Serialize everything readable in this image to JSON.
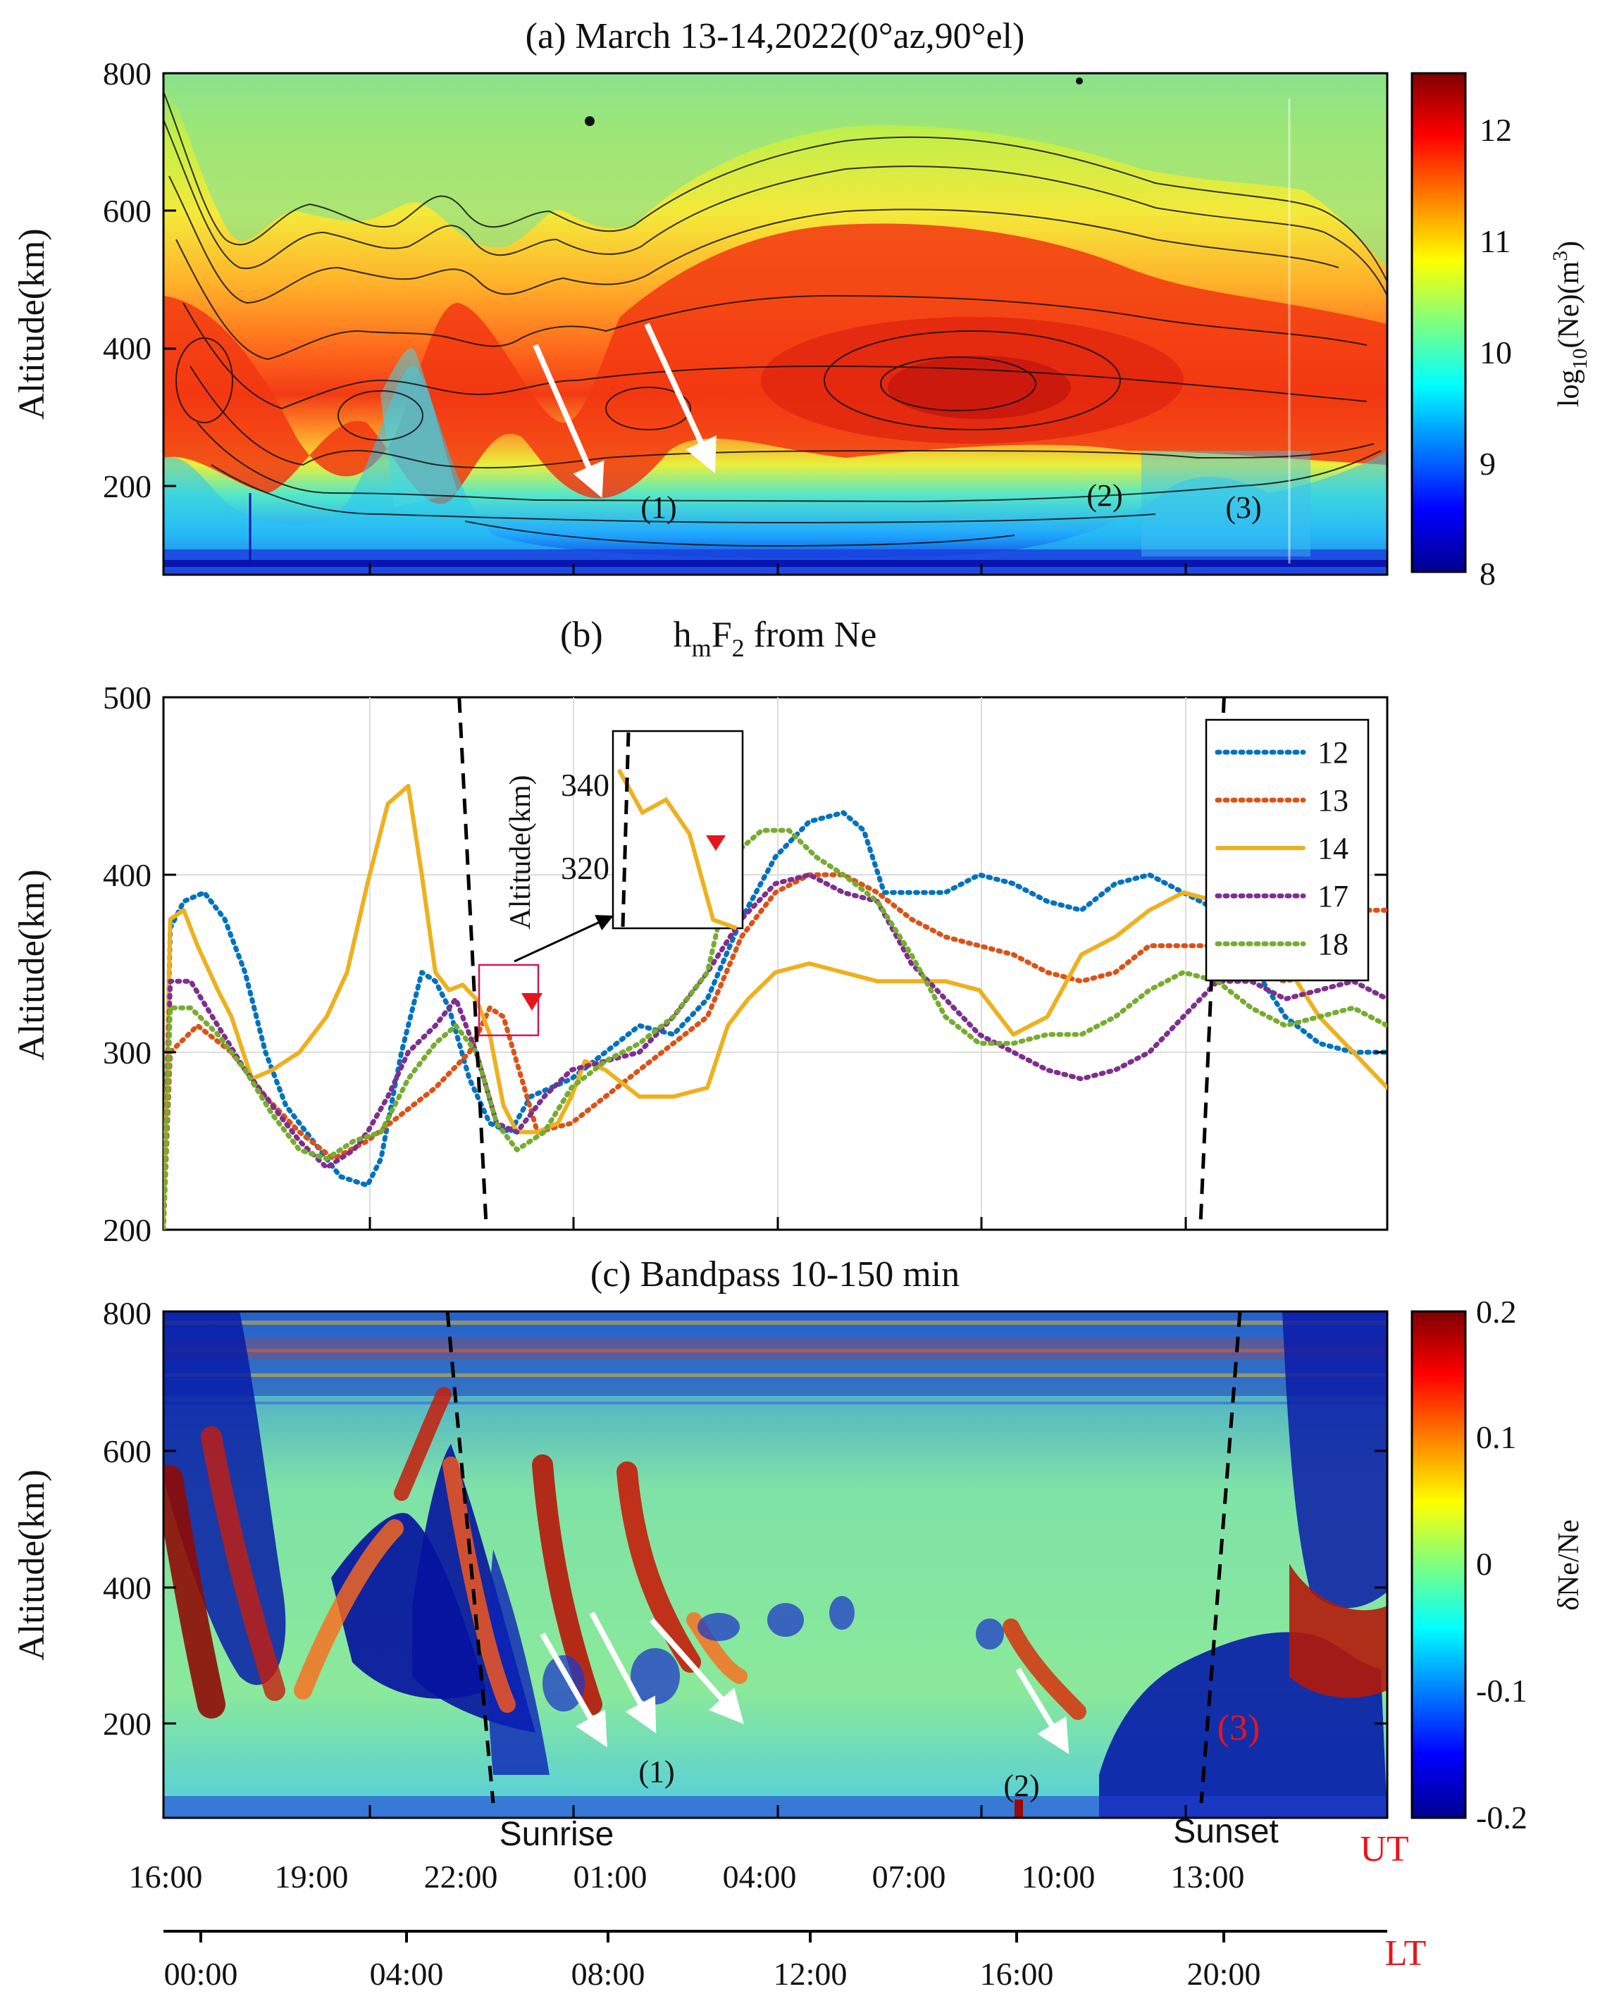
{
  "colors": {
    "c12": "#0072bd",
    "c13": "#d95319",
    "c14": "#edb120",
    "c17": "#7e2f8e",
    "c18": "#77ac30",
    "triangle": "#e8141b",
    "ut_lt": "#e8141b"
  },
  "panel_a": {
    "title": "(a) March 13-14,2022(0°az,90°el)",
    "ylabel": "Altitude(km)",
    "yticks": [
      "200",
      "400",
      "600",
      "800"
    ],
    "colorbar_label_main": "log",
    "colorbar_label_sub": "10",
    "colorbar_label_rest": "(Ne)(m",
    "colorbar_label_sup": "3",
    "colorbar_label_end": ")",
    "colorbar_ticks": [
      "8",
      "9",
      "10",
      "11",
      "12"
    ],
    "labels": [
      "(1)",
      "(2)",
      "(3)"
    ]
  },
  "panel_b": {
    "title_h": "h",
    "title_m": "m",
    "title_F": "F",
    "title_2": "2",
    "title_rest": " from Ne",
    "ylabel": "Altitude(km)",
    "yticks": [
      "200",
      "300",
      "400",
      "500"
    ],
    "inset_ylabel": "Altitude(km)",
    "inset_yticks": [
      "320",
      "340"
    ]
  },
  "panel_c": {
    "title": "(c) Bandpass 10-150 min",
    "ylabel": "Altitude(km)",
    "yticks": [
      "200",
      "400",
      "600",
      "800"
    ],
    "colorbar_label": "δNe/Ne",
    "colorbar_ticks": [
      "-0.2",
      "-0.1",
      "0",
      "0.1",
      "0.2"
    ],
    "labels": [
      "(1)",
      "(2)"
    ],
    "label3": "(3)",
    "sunrise": "Sunrise",
    "sunset": "Sunset"
  },
  "axes": {
    "ut_label": "UT",
    "lt_label": "LT",
    "ut_ticks": [
      "16:00",
      "19:00",
      "22:00",
      "01:00",
      "04:00",
      "07:00",
      "10:00",
      "13:00"
    ],
    "lt_ticks": [
      "00:00",
      "04:00",
      "08:00",
      "12:00",
      "16:00",
      "20:00"
    ]
  },
  "chart_data": [
    {
      "type": "heatmap",
      "title": "(a) March 13-14,2022(0°az,90°el)",
      "xlabel": "UT",
      "ylabel": "Altitude(km)",
      "xlim_hours_from_16UT": [
        0,
        18
      ],
      "ylim": [
        75,
        800
      ],
      "colorbar": {
        "label": "log10(Ne)(m3)",
        "range": [
          8,
          12.5
        ]
      },
      "notes": "Electron density with contours; F2 peak near 300-350 km; annotations (1),(2),(3)"
    },
    {
      "type": "line",
      "title": "(b) hmF2 from Ne",
      "ylabel": "Altitude(km)",
      "ylim": [
        200,
        500
      ],
      "x_unit": "hours after 16:00 UT",
      "series": [
        {
          "name": "12",
          "style": "dotted",
          "x": [
            0,
            0.1,
            0.3,
            0.6,
            0.9,
            1.2,
            1.5,
            1.8,
            2.2,
            2.6,
            3.0,
            3.2,
            3.5,
            3.8,
            4.0,
            4.2,
            4.5,
            4.8,
            5.1,
            5.4,
            5.7,
            6.0,
            6.5,
            7.0,
            7.5,
            8.0,
            8.5,
            9.0,
            9.5,
            10.0,
            10.3,
            10.6,
            11.0,
            11.5,
            12.0,
            12.5,
            13.0,
            13.5,
            14.0,
            14.5,
            15.0,
            15.5,
            16.0,
            16.5,
            17.0,
            17.5,
            18.0
          ],
          "y": [
            200,
            370,
            385,
            390,
            375,
            345,
            300,
            270,
            250,
            230,
            225,
            240,
            300,
            345,
            340,
            325,
            285,
            260,
            255,
            275,
            280,
            285,
            300,
            315,
            310,
            330,
            375,
            410,
            430,
            435,
            425,
            390,
            390,
            390,
            400,
            395,
            385,
            380,
            395,
            400,
            390,
            380,
            350,
            320,
            305,
            300,
            300
          ]
        },
        {
          "name": "13",
          "style": "dotted",
          "x": [
            0,
            0.1,
            0.5,
            1.0,
            1.5,
            2.0,
            2.5,
            3.0,
            3.5,
            4.0,
            4.5,
            4.8,
            5.0,
            5.5,
            6.0,
            6.5,
            7.0,
            7.5,
            8.0,
            8.5,
            9.0,
            9.5,
            10.0,
            10.5,
            11.0,
            11.5,
            12.0,
            12.5,
            13.0,
            13.5,
            14.0,
            14.5,
            15.0,
            15.5,
            16.0,
            16.5,
            17.0,
            17.5,
            18.0
          ],
          "y": [
            200,
            300,
            315,
            300,
            275,
            255,
            240,
            250,
            265,
            280,
            300,
            325,
            320,
            255,
            260,
            275,
            290,
            305,
            320,
            365,
            390,
            400,
            400,
            390,
            375,
            365,
            360,
            355,
            345,
            340,
            345,
            360,
            360,
            360,
            345,
            340,
            345,
            380,
            380
          ]
        },
        {
          "name": "14",
          "style": "solid",
          "x": [
            0,
            0.1,
            0.3,
            0.5,
            0.8,
            1.0,
            1.3,
            1.6,
            2.0,
            2.4,
            2.7,
            3.0,
            3.3,
            3.6,
            3.8,
            4.0,
            4.2,
            4.4,
            4.6,
            4.8,
            5.0,
            5.2,
            5.5,
            5.8,
            6.0,
            6.2,
            6.5,
            7.0,
            7.5,
            8.0,
            8.3,
            8.6,
            9.0,
            9.5,
            10.0,
            10.5,
            11.0,
            11.5,
            12.0,
            12.5,
            13.0,
            13.5,
            14.0,
            14.5,
            15.0,
            15.5,
            16.0,
            16.5,
            17.0,
            17.5,
            18.0
          ],
          "y": [
            200,
            375,
            380,
            360,
            335,
            320,
            285,
            290,
            300,
            320,
            345,
            395,
            440,
            450,
            400,
            345,
            335,
            338,
            330,
            310,
            270,
            255,
            255,
            260,
            275,
            295,
            290,
            275,
            275,
            280,
            315,
            330,
            345,
            350,
            345,
            340,
            340,
            340,
            335,
            310,
            320,
            355,
            365,
            380,
            390,
            385,
            375,
            350,
            320,
            300,
            280
          ]
        },
        {
          "name": "17",
          "style": "dotted",
          "x": [
            0,
            0.1,
            0.4,
            0.8,
            1.2,
            1.6,
            2.0,
            2.4,
            2.8,
            3.0,
            3.3,
            3.6,
            4.0,
            4.3,
            4.6,
            4.9,
            5.2,
            5.6,
            6.0,
            6.5,
            7.0,
            7.5,
            8.0,
            8.5,
            9.0,
            9.5,
            10.0,
            10.5,
            11.0,
            11.5,
            12.0,
            12.5,
            13.0,
            13.5,
            14.0,
            14.5,
            15.0,
            15.5,
            16.0,
            16.5,
            17.0,
            17.5,
            18.0
          ],
          "y": [
            200,
            340,
            340,
            315,
            290,
            270,
            250,
            235,
            245,
            255,
            275,
            300,
            315,
            330,
            300,
            260,
            255,
            275,
            290,
            295,
            300,
            320,
            345,
            375,
            395,
            400,
            390,
            385,
            350,
            330,
            310,
            300,
            290,
            285,
            290,
            300,
            320,
            340,
            340,
            330,
            335,
            340,
            330
          ]
        },
        {
          "name": "18",
          "style": "dotted",
          "x": [
            0,
            0.1,
            0.4,
            0.8,
            1.2,
            1.6,
            2.0,
            2.4,
            2.8,
            3.2,
            3.6,
            4.0,
            4.3,
            4.6,
            4.9,
            5.2,
            5.6,
            6.0,
            6.5,
            7.0,
            7.5,
            8.0,
            8.3,
            8.5,
            8.8,
            9.2,
            9.6,
            10.0,
            10.5,
            11.0,
            11.5,
            12.0,
            12.5,
            13.0,
            13.5,
            14.0,
            14.5,
            15.0,
            15.5,
            16.0,
            16.5,
            17.0,
            17.5,
            18.0
          ],
          "y": [
            200,
            325,
            325,
            310,
            290,
            265,
            245,
            240,
            250,
            255,
            285,
            305,
            315,
            300,
            260,
            245,
            255,
            280,
            295,
            305,
            320,
            345,
            395,
            415,
            425,
            425,
            410,
            400,
            385,
            355,
            320,
            305,
            305,
            310,
            310,
            320,
            335,
            345,
            340,
            325,
            315,
            320,
            325,
            315
          ]
        }
      ],
      "sunrise_line_x": [
        4.35,
        4.75
      ],
      "sunset_line_x": [
        15.25,
        15.6
      ],
      "inset": {
        "ylim": [
          308,
          354
        ],
        "ylabel": "Altitude(km)"
      }
    },
    {
      "type": "heatmap",
      "title": "(c) Bandpass 10-150 min",
      "xlabel": "UT",
      "ylabel": "Altitude(km)",
      "ylim": [
        75,
        800
      ],
      "colorbar": {
        "label": "δNe/Ne",
        "range": [
          -0.2,
          0.2
        ]
      },
      "annotations": [
        "Sunrise",
        "Sunset",
        "(1)",
        "(2)",
        "(3)"
      ]
    }
  ]
}
